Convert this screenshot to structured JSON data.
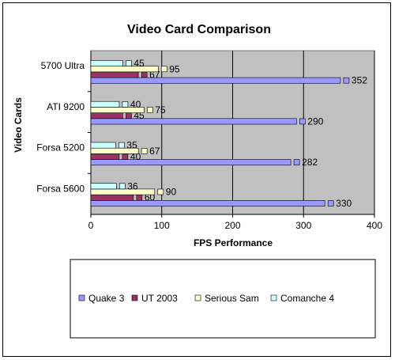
{
  "chart_data": {
    "type": "bar",
    "orientation": "horizontal",
    "title": "Video Card Comparison",
    "xlabel": "FPS Performance",
    "ylabel": "Video Cards",
    "categories": [
      "5700 Ultra",
      "ATI 9200",
      "Forsa 5200",
      "Forsa 5600"
    ],
    "series": [
      {
        "name": "Quake 3",
        "values": [
          352,
          290,
          282,
          330
        ],
        "color": "#9999ff"
      },
      {
        "name": "UT 2003",
        "values": [
          67,
          45,
          40,
          60
        ],
        "color": "#993366"
      },
      {
        "name": "Serious Sam",
        "values": [
          95,
          75,
          67,
          90
        ],
        "color": "#ffffcc"
      },
      {
        "name": "Comanche 4",
        "values": [
          45,
          40,
          35,
          36
        ],
        "color": "#ccffff"
      }
    ],
    "xlim": [
      0,
      400
    ],
    "xticks": [
      0,
      100,
      200,
      300,
      400
    ],
    "grid": true,
    "plot_background": "#c0c0c0",
    "legend_position": "bottom",
    "data_labels": true
  }
}
